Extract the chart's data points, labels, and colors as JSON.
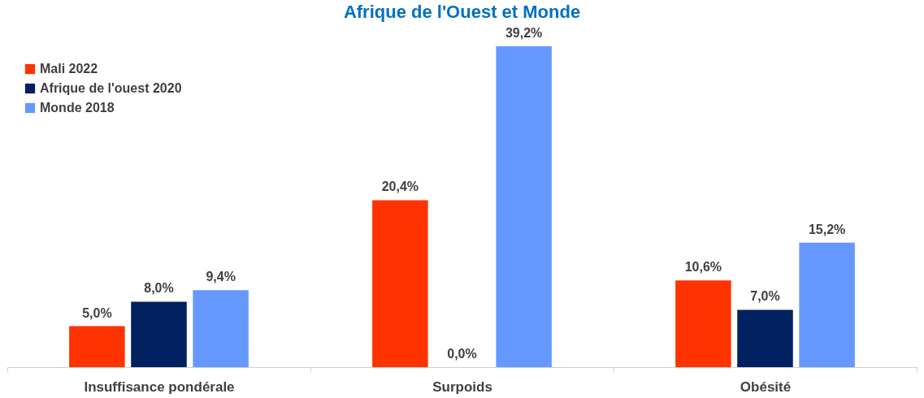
{
  "chart_data": {
    "type": "bar",
    "title": "Afrique de l'Ouest et Monde",
    "categories": [
      "Insuffisance pondérale",
      "Surpoids",
      "Obésité"
    ],
    "series": [
      {
        "name": "Mali 2022",
        "color": "#ff3300",
        "values": [
          5.0,
          20.4,
          10.6
        ],
        "value_labels": [
          "5,0%",
          "20,4%",
          "10,6%"
        ]
      },
      {
        "name": "Afrique de l'ouest 2020",
        "color": "#002060",
        "values": [
          8.0,
          0.0,
          7.0
        ],
        "value_labels": [
          "8,0%",
          "0,0%",
          "7,0%"
        ]
      },
      {
        "name": "Monde 2018",
        "color": "#6699ff",
        "values": [
          9.4,
          39.2,
          15.2
        ],
        "value_labels": [
          "9,4%",
          "39,2%",
          "15,2%"
        ]
      }
    ],
    "grid": false,
    "legend": "top left"
  }
}
